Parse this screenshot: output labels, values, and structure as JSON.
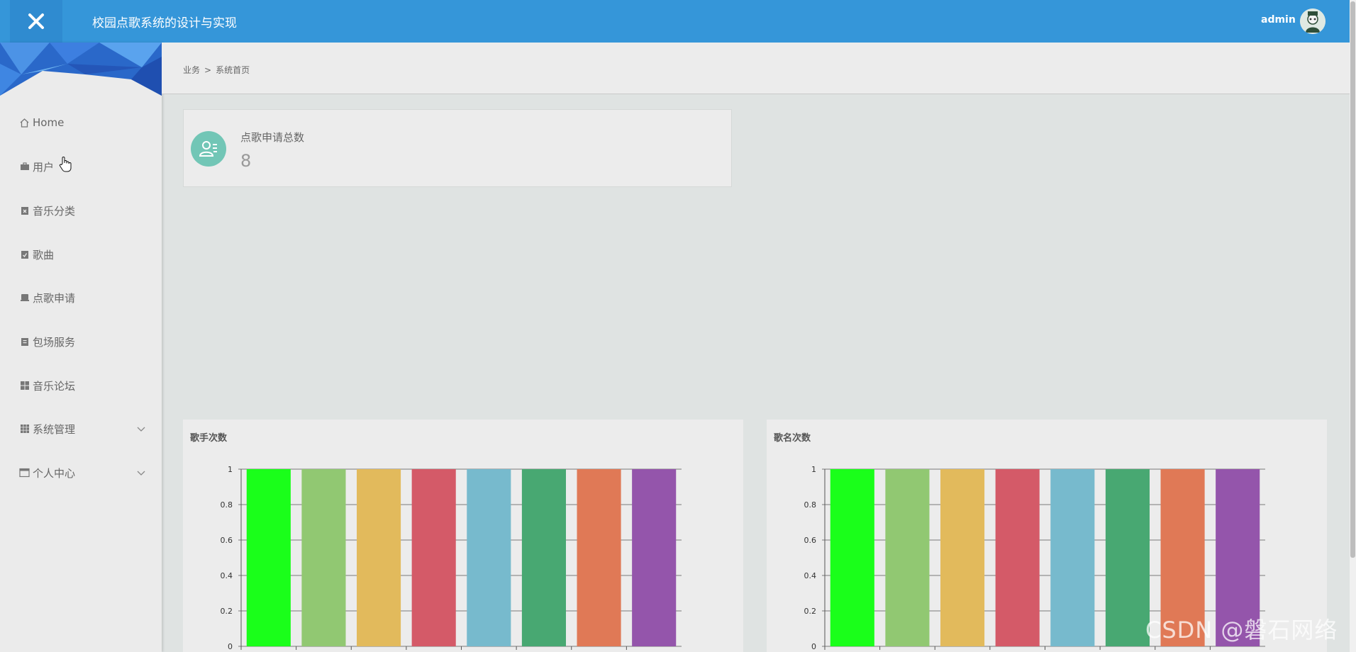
{
  "header": {
    "title": "校园点歌系统的设计与实现",
    "user": "admin"
  },
  "breadcrumb": {
    "items": [
      "业务",
      "系统首页"
    ],
    "separator": ">"
  },
  "sidebar": {
    "items": [
      {
        "label": "Home",
        "icon": "home-icon"
      },
      {
        "label": "用户",
        "icon": "briefcase-icon"
      },
      {
        "label": "音乐分类",
        "icon": "clipboard-x-icon"
      },
      {
        "label": "歌曲",
        "icon": "clipboard-check-icon"
      },
      {
        "label": "点歌申请",
        "icon": "laptop-icon"
      },
      {
        "label": "包场服务",
        "icon": "clipboard-icon"
      },
      {
        "label": "音乐论坛",
        "icon": "grid-icon"
      },
      {
        "label": "系统管理",
        "icon": "grid-3x3-icon",
        "expandable": true
      },
      {
        "label": "个人中心",
        "icon": "window-icon",
        "expandable": true
      }
    ]
  },
  "stats": {
    "label": "点歌申请总数",
    "value": "8"
  },
  "chart_data": [
    {
      "type": "bar",
      "title": "歌手次数",
      "categories": [
        "",
        "",
        "",
        "",
        "",
        "",
        "",
        ""
      ],
      "values": [
        1,
        1,
        1,
        1,
        1,
        1,
        1,
        1
      ],
      "colors": [
        "#1aff1a",
        "#91c872",
        "#e2ba5c",
        "#d45a68",
        "#77bacd",
        "#48a872",
        "#e07956",
        "#9455ab"
      ],
      "ylim": [
        0,
        1
      ],
      "yticks": [
        "0",
        "0.2",
        "0.4",
        "0.6",
        "0.8",
        "1"
      ],
      "grid": true
    },
    {
      "type": "bar",
      "title": "歌名次数",
      "categories": [
        "",
        "",
        "",
        "",
        "",
        "",
        "",
        ""
      ],
      "values": [
        1,
        1,
        1,
        1,
        1,
        1,
        1,
        1
      ],
      "colors": [
        "#1aff1a",
        "#91c872",
        "#e2ba5c",
        "#d45a68",
        "#77bacd",
        "#48a872",
        "#e07956",
        "#9455ab"
      ],
      "ylim": [
        0,
        1
      ],
      "yticks": [
        "0",
        "0.2",
        "0.4",
        "0.6",
        "0.8",
        "1"
      ],
      "grid": true
    }
  ],
  "watermark": "CSDN @磐石网络"
}
